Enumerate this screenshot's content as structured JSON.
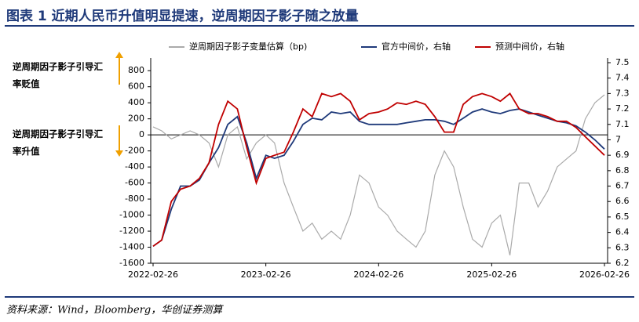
{
  "chart_data": {
    "type": "line",
    "title": "图表 1   近期人民币升值明显提速，逆周期因子影子随之放量",
    "source": "资料来源：Wind，Bloomberg，华创证券测算",
    "annotations": [
      "逆周期因子影子引导汇率贬值",
      "逆周期因子影子引导汇率升值"
    ],
    "x": [
      "2022-02-26",
      "2022-03-26",
      "2022-04-26",
      "2022-05-26",
      "2022-06-26",
      "2022-07-26",
      "2022-08-26",
      "2022-09-26",
      "2022-10-26",
      "2022-11-26",
      "2022-12-26",
      "2023-01-26",
      "2023-02-26",
      "2023-03-26",
      "2023-04-26",
      "2023-05-26",
      "2023-06-26",
      "2023-07-26",
      "2023-08-26",
      "2023-09-26",
      "2023-10-26",
      "2023-11-26",
      "2023-12-26",
      "2024-01-26",
      "2024-02-26",
      "2024-03-26",
      "2024-04-26",
      "2024-05-26",
      "2024-06-26",
      "2024-07-26",
      "2024-08-26",
      "2024-09-26",
      "2024-10-26",
      "2024-11-26",
      "2024-12-26",
      "2025-01-26",
      "2025-02-26",
      "2025-03-26",
      "2025-04-26",
      "2025-05-26",
      "2025-06-26",
      "2025-07-26",
      "2025-08-26",
      "2025-09-26",
      "2025-10-26",
      "2025-11-26",
      "2025-12-26",
      "2026-01-26",
      "2026-02-26"
    ],
    "xlim": [
      "2022-02-26",
      "2026-02-26"
    ],
    "xticks": [
      "2022-02-26",
      "2023-02-26",
      "2024-02-26",
      "2025-02-26",
      "2026-02-26"
    ],
    "ylim": [
      -1600,
      900
    ],
    "yticks": [
      -1600,
      -1400,
      -1200,
      -1000,
      -800,
      -600,
      -400,
      -200,
      0,
      200,
      400,
      600,
      800
    ],
    "y2lim": [
      6.2,
      7.5
    ],
    "y2ticks": [
      6.2,
      6.3,
      6.4,
      6.5,
      6.6,
      6.7,
      6.8,
      6.9,
      {
        "value": 7,
        "label": "7"
      },
      7.1,
      7.2,
      7.3,
      7.4,
      7.5
    ],
    "legend": "top",
    "series": [
      {
        "name": "逆周期因子影子变量估算（bp)",
        "color": "#aaaaaa",
        "values": [
          100,
          50,
          -50,
          0,
          50,
          0,
          -100,
          -400,
          0,
          100,
          -300,
          -100,
          0,
          -100,
          -600,
          -900,
          -1200,
          -1100,
          -1300,
          -1200,
          -1300,
          -1000,
          -500,
          -600,
          -900,
          -1000,
          -1200,
          -1300,
          -1400,
          -1200,
          -500,
          -200,
          -400,
          -900,
          -1300,
          -1400,
          -1100,
          -1000,
          -1500,
          -600,
          -600,
          -900,
          -700,
          -400,
          -300,
          -200,
          200,
          400,
          500
        ]
      },
      {
        "name": "官方中间价，右轴",
        "color": "#1f3a7a",
        "axis": "y2",
        "values": [
          6.31,
          6.35,
          6.55,
          6.7,
          6.7,
          6.74,
          6.85,
          6.95,
          7.1,
          7.15,
          6.98,
          6.75,
          6.9,
          6.88,
          6.9,
          6.99,
          7.1,
          7.14,
          7.13,
          7.18,
          7.17,
          7.18,
          7.12,
          7.1,
          7.1,
          7.1,
          7.1,
          7.11,
          7.12,
          7.13,
          7.13,
          7.12,
          7.1,
          7.14,
          7.18,
          7.2,
          7.18,
          7.17,
          7.19,
          7.2,
          7.18,
          7.16,
          7.14,
          7.12,
          7.11,
          7.09,
          7.05,
          7.0,
          6.94
        ]
      },
      {
        "name": "预测中间价，右轴",
        "color": "#c00000",
        "axis": "y2",
        "values": [
          6.31,
          6.35,
          6.6,
          6.68,
          6.7,
          6.75,
          6.85,
          7.1,
          7.25,
          7.2,
          6.95,
          6.72,
          6.88,
          6.9,
          6.92,
          7.05,
          7.2,
          7.15,
          7.3,
          7.28,
          7.3,
          7.25,
          7.13,
          7.17,
          7.18,
          7.2,
          7.24,
          7.23,
          7.25,
          7.23,
          7.15,
          7.05,
          7.05,
          7.23,
          7.28,
          7.3,
          7.28,
          7.25,
          7.3,
          7.2,
          7.17,
          7.17,
          7.15,
          7.12,
          7.12,
          7.08,
          7.02,
          6.96,
          6.9
        ]
      }
    ]
  }
}
